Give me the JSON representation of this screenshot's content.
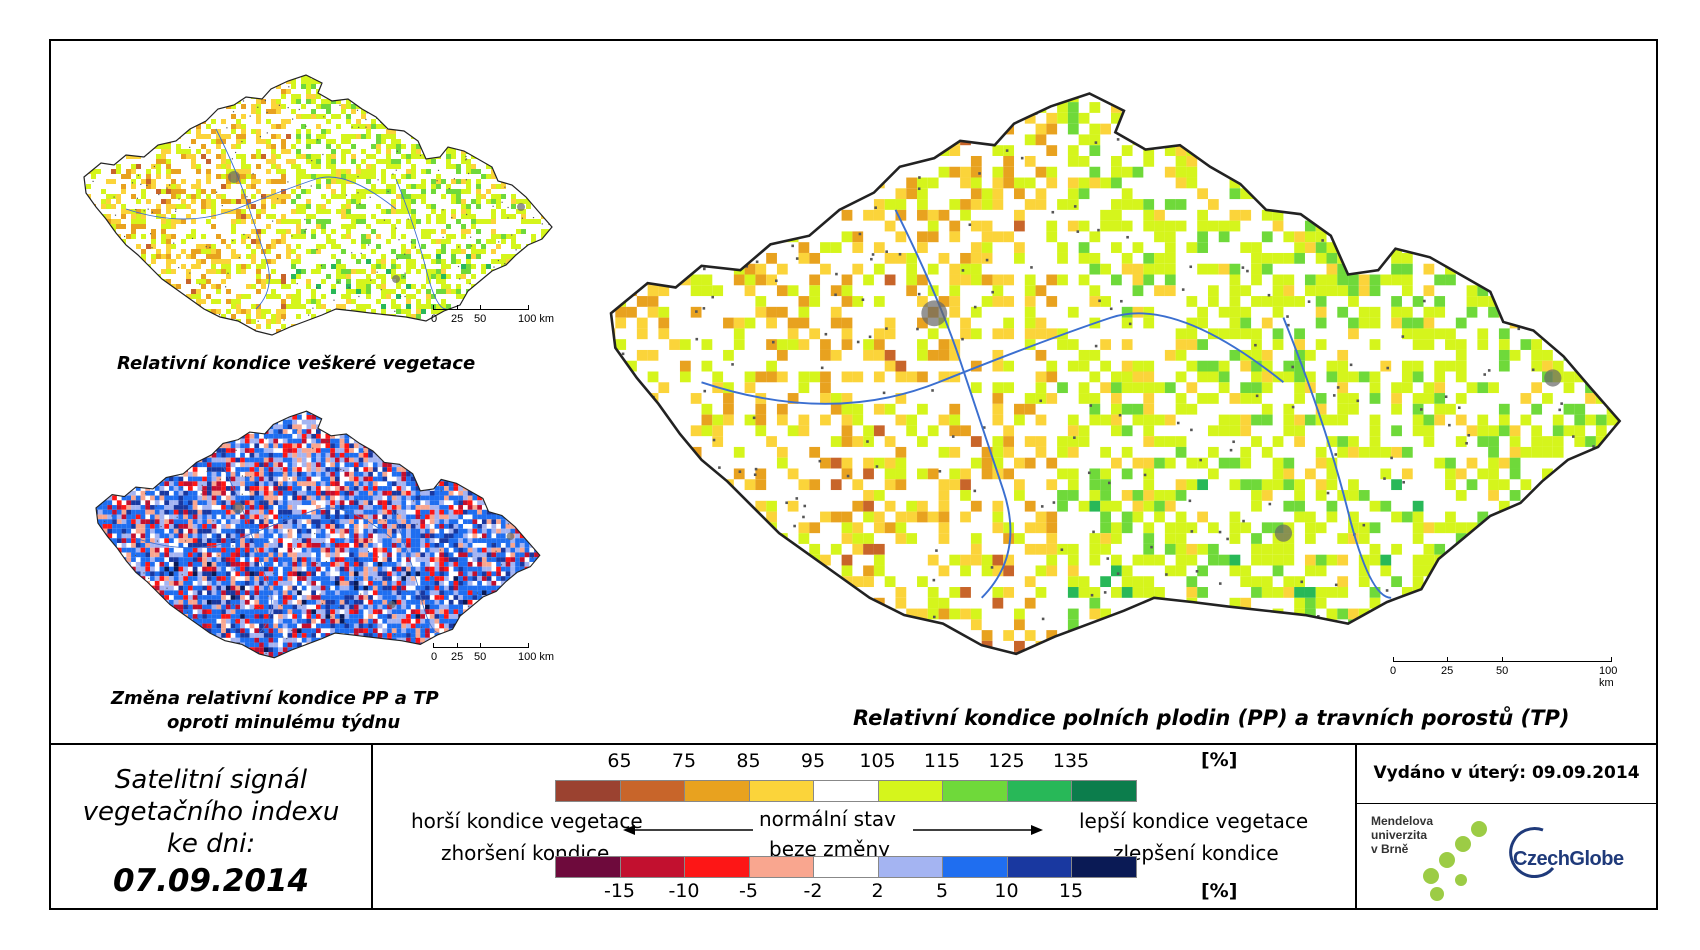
{
  "maps": {
    "all_vegetation": {
      "caption": "Relativní kondice veškeré vegetace"
    },
    "change": {
      "caption_line1": "Změna relativní kondice PP a TP",
      "caption_line2": "oproti minulému týdnu"
    },
    "main": {
      "caption": "Relativní kondice polních plodin (PP) a travních porostů (TP)"
    },
    "scalebar": {
      "labels": [
        "0",
        "25",
        "50",
        "100 km"
      ]
    }
  },
  "date_box": {
    "line1": "Satelitní signál",
    "line2": "vegetačního indexu",
    "line3": "ke dni:",
    "date": "07.09.2014"
  },
  "legend": {
    "top": {
      "unit": "[%]",
      "ticks": [
        "65",
        "75",
        "85",
        "95",
        "105",
        "115",
        "125",
        "135"
      ],
      "colors": [
        "#9b4230",
        "#c8652a",
        "#e8a21f",
        "#fbd43a",
        "#ffffff",
        "#d5f51c",
        "#6fd93a",
        "#28b858",
        "#0c7d4c"
      ]
    },
    "bottom": {
      "unit": "[%]",
      "ticks": [
        "-15",
        "-10",
        "-5",
        "-2",
        "2",
        "5",
        "10",
        "15"
      ],
      "colors": [
        "#6e0a3c",
        "#c2102f",
        "#fd1616",
        "#f9a68f",
        "#ffffff",
        "#a4b4f2",
        "#1f6ef0",
        "#1938a0",
        "#0a1a55"
      ]
    },
    "left_line1": "horší kondice vegetace",
    "left_line2": "zhoršení kondice",
    "center_line1": "normální stav",
    "center_line2": "beze změny",
    "right_line1": "lepší kondice vegetace",
    "right_line2": "zlepšení kondice"
  },
  "issued": {
    "text": "Vydáno v úterý: 09.09.2014"
  },
  "logos": {
    "mendel_line1": "Mendelova",
    "mendel_line2": "univerzita",
    "mendel_line3": "v Brně",
    "czechglobe": "CzechGlobe"
  }
}
